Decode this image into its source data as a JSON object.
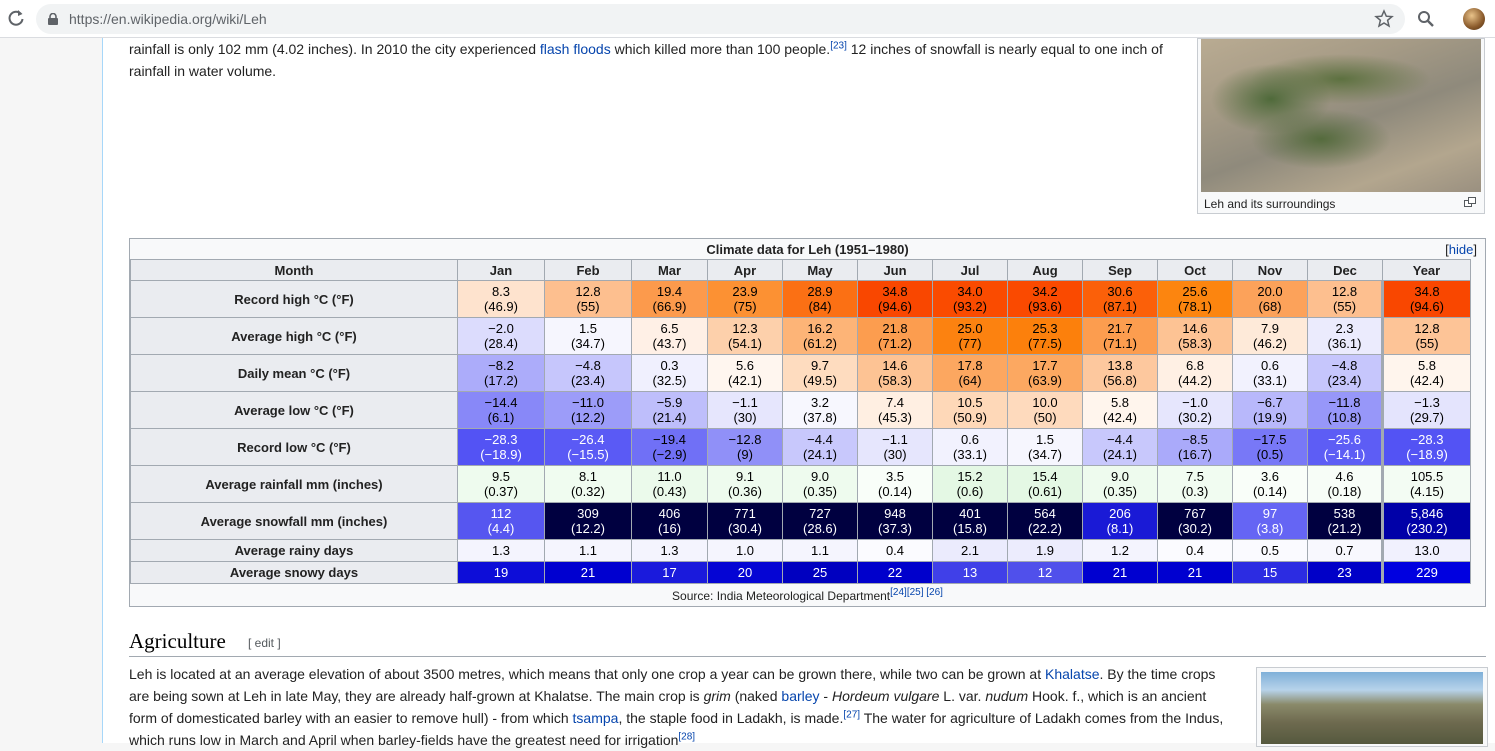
{
  "browser": {
    "url": "https://en.wikipedia.org/wiki/Leh"
  },
  "intro": {
    "line1_a": "rainfall is only 102 mm (4.02 inches). In 2010 the city experienced ",
    "line1_link": "flash floods",
    "line1_b": " which killed more than 100 people.",
    "line1_ref": "[23]",
    "line1_c": " 12 inches of snowfall is nearly equal to one inch of",
    "line2": "rainfall in water volume."
  },
  "thumb": {
    "caption": "Leh and its surroundings"
  },
  "climate": {
    "title": "Climate data for Leh (1951–1980)",
    "hide_open": "[",
    "hide_label": "hide",
    "hide_close": "]",
    "month_header": "Month",
    "columns": [
      "Jan",
      "Feb",
      "Mar",
      "Apr",
      "May",
      "Jun",
      "Jul",
      "Aug",
      "Sep",
      "Oct",
      "Nov",
      "Dec",
      "Year"
    ],
    "rows": [
      {
        "label": "Record high °C (°F)",
        "cells": [
          {
            "v": "8.3",
            "s": "(46.9)",
            "bg": "#fee3ce",
            "fg": "#000"
          },
          {
            "v": "12.8",
            "s": "(55)",
            "bg": "#fdbf8f",
            "fg": "#000"
          },
          {
            "v": "19.4",
            "s": "(66.9)",
            "bg": "#fc9a4c",
            "fg": "#000"
          },
          {
            "v": "23.9",
            "s": "(75)",
            "bg": "#fc9133",
            "fg": "#000"
          },
          {
            "v": "28.9",
            "s": "(84)",
            "bg": "#fb7014",
            "fg": "#000"
          },
          {
            "v": "34.8",
            "s": "(94.6)",
            "bg": "#f94700",
            "fg": "#000"
          },
          {
            "v": "34.0",
            "s": "(93.2)",
            "bg": "#fa4b00",
            "fg": "#000"
          },
          {
            "v": "34.2",
            "s": "(93.6)",
            "bg": "#fa4a00",
            "fg": "#000"
          },
          {
            "v": "30.6",
            "s": "(87.1)",
            "bg": "#fb6009",
            "fg": "#000"
          },
          {
            "v": "25.6",
            "s": "(78.1)",
            "bg": "#fc850f",
            "fg": "#000"
          },
          {
            "v": "20.0",
            "s": "(68)",
            "bg": "#fca25a",
            "fg": "#000"
          },
          {
            "v": "12.8",
            "s": "(55)",
            "bg": "#fdbf8f",
            "fg": "#000"
          },
          {
            "v": "34.8",
            "s": "(94.6)",
            "bg": "#f94700",
            "fg": "#000"
          }
        ]
      },
      {
        "label": "Average high °C (°F)",
        "cells": [
          {
            "v": "−2.0",
            "s": "(28.4)",
            "bg": "#dcdcfd",
            "fg": "#000"
          },
          {
            "v": "1.5",
            "s": "(34.7)",
            "bg": "#f6f6fe",
            "fg": "#000"
          },
          {
            "v": "6.5",
            "s": "(43.7)",
            "bg": "#fff0e6",
            "fg": "#000"
          },
          {
            "v": "12.3",
            "s": "(54.1)",
            "bg": "#fdd0ab",
            "fg": "#000"
          },
          {
            "v": "16.2",
            "s": "(61.2)",
            "bg": "#fdb477",
            "fg": "#000"
          },
          {
            "v": "21.8",
            "s": "(71.2)",
            "bg": "#fc9d4f",
            "fg": "#000"
          },
          {
            "v": "25.0",
            "s": "(77)",
            "bg": "#fc8210",
            "fg": "#000"
          },
          {
            "v": "25.3",
            "s": "(77.5)",
            "bg": "#fc800c",
            "fg": "#000"
          },
          {
            "v": "21.7",
            "s": "(71.1)",
            "bg": "#fc9d4f",
            "fg": "#000"
          },
          {
            "v": "14.6",
            "s": "(58.3)",
            "bg": "#fdc394",
            "fg": "#000"
          },
          {
            "v": "7.9",
            "s": "(46.2)",
            "bg": "#feead9",
            "fg": "#000"
          },
          {
            "v": "2.3",
            "s": "(36.1)",
            "bg": "#ebebfd",
            "fg": "#000"
          },
          {
            "v": "12.8",
            "s": "(55)",
            "bg": "#fdc497",
            "fg": "#000"
          }
        ]
      },
      {
        "label": "Daily mean °C (°F)",
        "cells": [
          {
            "v": "−8.2",
            "s": "(17.2)",
            "bg": "#acacfa",
            "fg": "#000"
          },
          {
            "v": "−4.8",
            "s": "(23.4)",
            "bg": "#c6c6fc",
            "fg": "#000"
          },
          {
            "v": "0.3",
            "s": "(32.5)",
            "bg": "#f0f0fe",
            "fg": "#000"
          },
          {
            "v": "5.6",
            "s": "(42.1)",
            "bg": "#fff6ef",
            "fg": "#000"
          },
          {
            "v": "9.7",
            "s": "(49.5)",
            "bg": "#fedcbf",
            "fg": "#000"
          },
          {
            "v": "14.6",
            "s": "(58.3)",
            "bg": "#fdc394",
            "fg": "#000"
          },
          {
            "v": "17.8",
            "s": "(64)",
            "bg": "#fca760",
            "fg": "#000"
          },
          {
            "v": "17.7",
            "s": "(63.9)",
            "bg": "#fca861",
            "fg": "#000"
          },
          {
            "v": "13.8",
            "s": "(56.8)",
            "bg": "#fdc89e",
            "fg": "#000"
          },
          {
            "v": "6.8",
            "s": "(44.2)",
            "bg": "#fff0e4",
            "fg": "#000"
          },
          {
            "v": "0.6",
            "s": "(33.1)",
            "bg": "#f2f2fe",
            "fg": "#000"
          },
          {
            "v": "−4.8",
            "s": "(23.4)",
            "bg": "#c6c6fc",
            "fg": "#000"
          },
          {
            "v": "5.8",
            "s": "(42.4)",
            "bg": "#fff5ed",
            "fg": "#000"
          }
        ]
      },
      {
        "label": "Average low °C (°F)",
        "cells": [
          {
            "v": "−14.4",
            "s": "(6.1)",
            "bg": "#8888f8",
            "fg": "#000"
          },
          {
            "v": "−11.0",
            "s": "(12.2)",
            "bg": "#9c9cf9",
            "fg": "#000"
          },
          {
            "v": "−5.9",
            "s": "(21.4)",
            "bg": "#bebefb",
            "fg": "#000"
          },
          {
            "v": "−1.1",
            "s": "(30)",
            "bg": "#e6e6fd",
            "fg": "#000"
          },
          {
            "v": "3.2",
            "s": "(37.8)",
            "bg": "#f7f7fe",
            "fg": "#000"
          },
          {
            "v": "7.4",
            "s": "(45.3)",
            "bg": "#ffefe2",
            "fg": "#000"
          },
          {
            "v": "10.5",
            "s": "(50.9)",
            "bg": "#fed8b8",
            "fg": "#000"
          },
          {
            "v": "10.0",
            "s": "(50)",
            "bg": "#fedabd",
            "fg": "#000"
          },
          {
            "v": "5.8",
            "s": "(42.4)",
            "bg": "#fff5ed",
            "fg": "#000"
          },
          {
            "v": "−1.0",
            "s": "(30.2)",
            "bg": "#e6e6fd",
            "fg": "#000"
          },
          {
            "v": "−6.7",
            "s": "(19.9)",
            "bg": "#b8b8fb",
            "fg": "#000"
          },
          {
            "v": "−11.8",
            "s": "(10.8)",
            "bg": "#9797f9",
            "fg": "#000"
          },
          {
            "v": "−1.3",
            "s": "(29.7)",
            "bg": "#e4e4fd",
            "fg": "#000"
          }
        ]
      },
      {
        "label": "Record low °C (°F)",
        "cells": [
          {
            "v": "−28.3",
            "s": "(−18.9)",
            "bg": "#5353f4",
            "fg": "#fff"
          },
          {
            "v": "−26.4",
            "s": "(−15.5)",
            "bg": "#5a5af5",
            "fg": "#fff"
          },
          {
            "v": "−19.4",
            "s": "(−2.9)",
            "bg": "#7070f6",
            "fg": "#000"
          },
          {
            "v": "−12.8",
            "s": "(9)",
            "bg": "#9090f8",
            "fg": "#000"
          },
          {
            "v": "−4.4",
            "s": "(24.1)",
            "bg": "#c8c8fc",
            "fg": "#000"
          },
          {
            "v": "−1.1",
            "s": "(30)",
            "bg": "#e6e6fd",
            "fg": "#000"
          },
          {
            "v": "0.6",
            "s": "(33.1)",
            "bg": "#f2f2fe",
            "fg": "#000"
          },
          {
            "v": "1.5",
            "s": "(34.7)",
            "bg": "#f6f6fe",
            "fg": "#000"
          },
          {
            "v": "−4.4",
            "s": "(24.1)",
            "bg": "#c8c8fc",
            "fg": "#000"
          },
          {
            "v": "−8.5",
            "s": "(16.7)",
            "bg": "#aaaafa",
            "fg": "#000"
          },
          {
            "v": "−17.5",
            "s": "(0.5)",
            "bg": "#7878f7",
            "fg": "#000"
          },
          {
            "v": "−25.6",
            "s": "(−14.1)",
            "bg": "#5d5df5",
            "fg": "#fff"
          },
          {
            "v": "−28.3",
            "s": "(−18.9)",
            "bg": "#5353f4",
            "fg": "#fff"
          }
        ]
      },
      {
        "label": "Average rainfall mm (inches)",
        "cells": [
          {
            "v": "9.5",
            "s": "(0.37)",
            "bg": "#eefbee",
            "fg": "#000"
          },
          {
            "v": "8.1",
            "s": "(0.32)",
            "bg": "#f0fcf0",
            "fg": "#000"
          },
          {
            "v": "11.0",
            "s": "(0.43)",
            "bg": "#ebfaeb",
            "fg": "#000"
          },
          {
            "v": "9.1",
            "s": "(0.36)",
            "bg": "#eefbee",
            "fg": "#000"
          },
          {
            "v": "9.0",
            "s": "(0.35)",
            "bg": "#eefbee",
            "fg": "#000"
          },
          {
            "v": "3.5",
            "s": "(0.14)",
            "bg": "#f9fef9",
            "fg": "#000"
          },
          {
            "v": "15.2",
            "s": "(0.6)",
            "bg": "#e4f8e4",
            "fg": "#000"
          },
          {
            "v": "15.4",
            "s": "(0.61)",
            "bg": "#e4f8e4",
            "fg": "#000"
          },
          {
            "v": "9.0",
            "s": "(0.35)",
            "bg": "#eefbee",
            "fg": "#000"
          },
          {
            "v": "7.5",
            "s": "(0.3)",
            "bg": "#f1fcf1",
            "fg": "#000"
          },
          {
            "v": "3.6",
            "s": "(0.14)",
            "bg": "#f9fef9",
            "fg": "#000"
          },
          {
            "v": "4.6",
            "s": "(0.18)",
            "bg": "#f7fdf7",
            "fg": "#000"
          },
          {
            "v": "105.5",
            "s": "(4.15)",
            "bg": "#f3fcf3",
            "fg": "#000"
          }
        ]
      },
      {
        "label": "Average snowfall mm (inches)",
        "cells": [
          {
            "v": "112",
            "s": "(4.4)",
            "bg": "#5656f0",
            "fg": "#fff"
          },
          {
            "v": "309",
            "s": "(12.2)",
            "bg": "#000040",
            "fg": "#fff"
          },
          {
            "v": "406",
            "s": "(16)",
            "bg": "#000040",
            "fg": "#fff"
          },
          {
            "v": "771",
            "s": "(30.4)",
            "bg": "#000040",
            "fg": "#fff"
          },
          {
            "v": "727",
            "s": "(28.6)",
            "bg": "#000040",
            "fg": "#fff"
          },
          {
            "v": "948",
            "s": "(37.3)",
            "bg": "#000040",
            "fg": "#fff"
          },
          {
            "v": "401",
            "s": "(15.8)",
            "bg": "#000040",
            "fg": "#fff"
          },
          {
            "v": "564",
            "s": "(22.2)",
            "bg": "#000040",
            "fg": "#fff"
          },
          {
            "v": "206",
            "s": "(8.1)",
            "bg": "#1a1ad6",
            "fg": "#fff"
          },
          {
            "v": "767",
            "s": "(30.2)",
            "bg": "#000040",
            "fg": "#fff"
          },
          {
            "v": "97",
            "s": "(3.8)",
            "bg": "#6565f4",
            "fg": "#fff"
          },
          {
            "v": "538",
            "s": "(21.2)",
            "bg": "#000040",
            "fg": "#fff"
          },
          {
            "v": "5,846",
            "s": "(230.2)",
            "bg": "#0000a8",
            "fg": "#fff"
          }
        ]
      },
      {
        "label": "Average rainy days",
        "single": true,
        "cells": [
          {
            "v": "1.3",
            "bg": "#f4f4fe",
            "fg": "#000"
          },
          {
            "v": "1.1",
            "bg": "#f5f5fe",
            "fg": "#000"
          },
          {
            "v": "1.3",
            "bg": "#f4f4fe",
            "fg": "#000"
          },
          {
            "v": "1.0",
            "bg": "#f5f5fe",
            "fg": "#000"
          },
          {
            "v": "1.1",
            "bg": "#f5f5fe",
            "fg": "#000"
          },
          {
            "v": "0.4",
            "bg": "#fbfbff",
            "fg": "#000"
          },
          {
            "v": "2.1",
            "bg": "#ebebfd",
            "fg": "#000"
          },
          {
            "v": "1.9",
            "bg": "#ececfd",
            "fg": "#000"
          },
          {
            "v": "1.2",
            "bg": "#f4f4fe",
            "fg": "#000"
          },
          {
            "v": "0.4",
            "bg": "#fbfbff",
            "fg": "#000"
          },
          {
            "v": "0.5",
            "bg": "#fafaff",
            "fg": "#000"
          },
          {
            "v": "0.7",
            "bg": "#f8f8fe",
            "fg": "#000"
          },
          {
            "v": "13.0",
            "bg": "#f1f1fe",
            "fg": "#000"
          }
        ]
      },
      {
        "label": "Average snowy days",
        "single": true,
        "cells": [
          {
            "v": "19",
            "bg": "#0d0dd8",
            "fg": "#fff"
          },
          {
            "v": "21",
            "bg": "#0000d0",
            "fg": "#fff"
          },
          {
            "v": "17",
            "bg": "#1a1adc",
            "fg": "#fff"
          },
          {
            "v": "20",
            "bg": "#0505d4",
            "fg": "#fff"
          },
          {
            "v": "25",
            "bg": "#0000c0",
            "fg": "#fff"
          },
          {
            "v": "22",
            "bg": "#0000cc",
            "fg": "#fff"
          },
          {
            "v": "13",
            "bg": "#4040e8",
            "fg": "#fff"
          },
          {
            "v": "12",
            "bg": "#5050eb",
            "fg": "#fff"
          },
          {
            "v": "21",
            "bg": "#0000d0",
            "fg": "#fff"
          },
          {
            "v": "21",
            "bg": "#0000d0",
            "fg": "#fff"
          },
          {
            "v": "15",
            "bg": "#2c2ce2",
            "fg": "#fff"
          },
          {
            "v": "23",
            "bg": "#0000c8",
            "fg": "#fff"
          },
          {
            "v": "229",
            "bg": "#0000e0",
            "fg": "#fff"
          }
        ]
      }
    ],
    "source_text": "Source: India Meteorological Department",
    "source_refs": "[24][25]",
    "source_ref3": " [26]"
  },
  "agriculture": {
    "heading": "Agriculture",
    "edit": "[ edit ]",
    "line1_a": "Leh is located at an average elevation of about 3500 metres, which means that only one crop a year can be grown there, while two can be grown at ",
    "line1_link": "Khalatse",
    "line1_b": ". By the time crops",
    "line2": "are being sown at Leh in late May, they are already half-grown at Khalatse. The main crop is ",
    "line2_grim": "grim",
    "line2_b": " (naked ",
    "line2_link": "barley",
    "line2_c": " - ",
    "line2_hv": "Hordeum vulgare",
    "line2_d": " L. var. ",
    "line2_nudum": "nudum",
    "line2_e": " Hook. f., which is an ancient",
    "line3_a": "form of domesticated barley with an easier to remove hull) - from which ",
    "line3_link": "tsampa",
    "line3_b": ", the staple food in Ladakh, is made.",
    "line3_ref": "[27]",
    "line3_c": " The water for agriculture of Ladakh comes from the Indus,",
    "line4": "which runs low in March and April when barley-fields have the greatest need for irrigation",
    "line4_ref": "[28]"
  }
}
